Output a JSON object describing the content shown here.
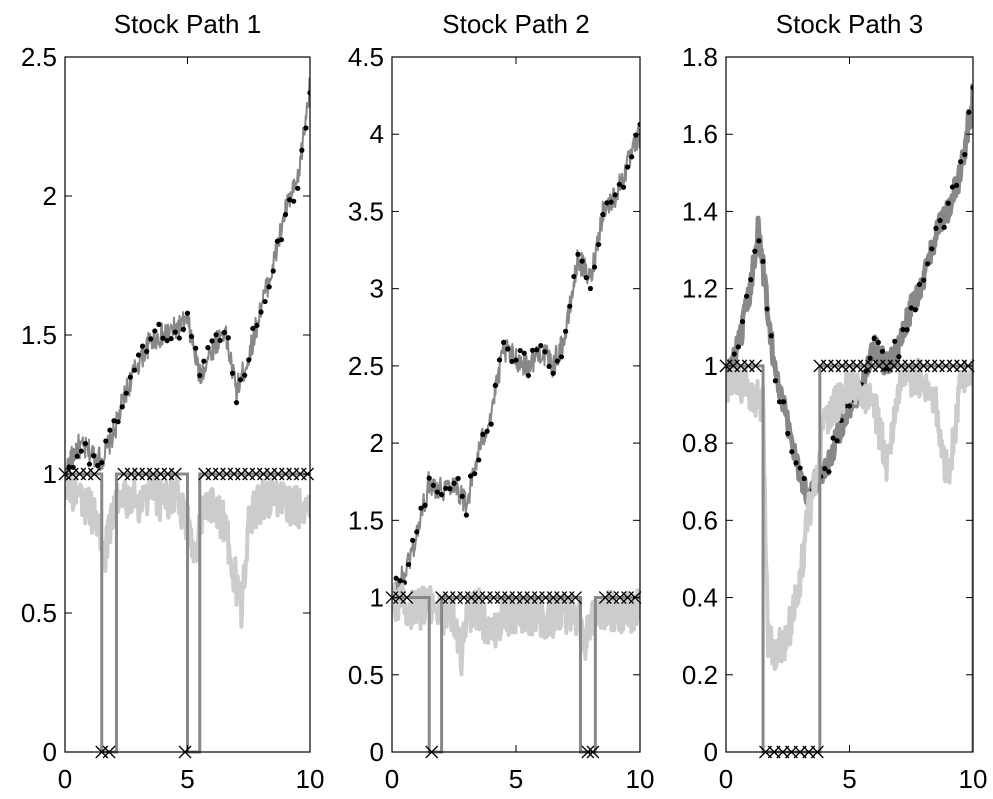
{
  "chart_data": [
    {
      "type": "line",
      "title": "Stock Path 1",
      "xlim": [
        0,
        10
      ],
      "ylim": [
        0,
        2.5
      ],
      "xticks": [
        0,
        5,
        10
      ],
      "yticks": [
        0,
        0.5,
        1,
        1.5,
        2,
        2.5
      ],
      "xtick_labels": [
        "0",
        "5",
        "10"
      ],
      "ytick_labels": [
        "0",
        "0.5",
        "1",
        "1.5",
        "2",
        "2.5"
      ],
      "series": [
        {
          "color": "#888888",
          "style": "stock",
          "x": [
            0,
            0.5,
            1,
            1.5,
            2,
            2.5,
            3,
            3.5,
            4,
            4.5,
            5,
            5.5,
            6,
            6.5,
            7,
            7.5,
            8,
            8.5,
            9,
            9.5,
            10
          ],
          "y": [
            1.0,
            1.1,
            1.08,
            1.05,
            1.15,
            1.3,
            1.4,
            1.48,
            1.5,
            1.52,
            1.55,
            1.35,
            1.45,
            1.52,
            1.3,
            1.42,
            1.6,
            1.75,
            1.95,
            2.05,
            2.4
          ]
        },
        {
          "color": "#cccccc",
          "style": "line",
          "x": [
            0,
            0.5,
            1,
            1.4,
            1.6,
            2,
            2.5,
            3,
            3.5,
            4,
            4.5,
            5,
            5.3,
            5.6,
            6,
            6.5,
            7,
            7.2,
            7.5,
            8,
            8.5,
            9,
            9.5,
            10
          ],
          "y": [
            0.98,
            0.9,
            0.88,
            0.8,
            0.7,
            0.88,
            0.92,
            0.9,
            0.93,
            0.9,
            0.94,
            0.82,
            0.72,
            0.85,
            0.9,
            0.82,
            0.6,
            0.5,
            0.85,
            0.9,
            0.92,
            0.9,
            0.88,
            0.9
          ]
        },
        {
          "color": "#888888",
          "style": "step",
          "x": [
            0,
            1.5,
            1.5,
            2.1,
            2.1,
            5,
            5,
            5.5,
            5.5,
            10
          ],
          "y": [
            1,
            1,
            0,
            0,
            1,
            1,
            0,
            0,
            1,
            1
          ]
        }
      ],
      "exercise_x": [
        0,
        0.3,
        0.6,
        0.9,
        1.2,
        2.4,
        2.7,
        3.0,
        3.3,
        3.6,
        3.9,
        4.2,
        4.5,
        5.7,
        6.0,
        6.3,
        6.6,
        6.9,
        7.2,
        7.5,
        7.8,
        8.1,
        8.4,
        8.7,
        9.0,
        9.3,
        9.6,
        9.9
      ],
      "zero_x": [
        1.5,
        1.8,
        4.9
      ]
    },
    {
      "type": "line",
      "title": "Stock Path 2",
      "xlim": [
        0,
        10
      ],
      "ylim": [
        0,
        4.5
      ],
      "xticks": [
        0,
        5,
        10
      ],
      "yticks": [
        0,
        0.5,
        1,
        1.5,
        2,
        2.5,
        3,
        3.5,
        4,
        4.5
      ],
      "xtick_labels": [
        "0",
        "5",
        "10"
      ],
      "ytick_labels": [
        "0",
        "0.5",
        "1",
        "1.5",
        "2",
        "2.5",
        "3",
        "3.5",
        "4",
        "4.5"
      ],
      "series": [
        {
          "color": "#888888",
          "style": "stock",
          "x": [
            0,
            0.5,
            1,
            1.5,
            2,
            2.5,
            3,
            3.5,
            4,
            4.5,
            5,
            5.5,
            6,
            6.5,
            7,
            7.5,
            8,
            8.5,
            9,
            9.5,
            10
          ],
          "y": [
            1.0,
            1.15,
            1.4,
            1.75,
            1.7,
            1.75,
            1.6,
            1.95,
            2.2,
            2.6,
            2.55,
            2.5,
            2.6,
            2.5,
            2.7,
            3.2,
            3.05,
            3.5,
            3.6,
            3.8,
            4.0
          ]
        },
        {
          "color": "#cccccc",
          "style": "line",
          "x": [
            0,
            0.5,
            1,
            1.5,
            2,
            2.5,
            2.8,
            3,
            3.5,
            4,
            4.5,
            5,
            5.5,
            6,
            6.5,
            7,
            7.5,
            7.8,
            8,
            8.5,
            9,
            9.5,
            10
          ],
          "y": [
            0.98,
            0.95,
            0.92,
            0.95,
            0.9,
            0.88,
            0.6,
            0.88,
            0.92,
            0.75,
            0.9,
            0.88,
            0.9,
            0.85,
            0.88,
            0.9,
            0.86,
            0.7,
            0.88,
            0.9,
            0.92,
            0.9,
            0.93
          ]
        },
        {
          "color": "#888888",
          "style": "step",
          "x": [
            0,
            1.5,
            1.5,
            2.0,
            2.0,
            4.2,
            4.2,
            7.6,
            7.6,
            8.2,
            8.2,
            10
          ],
          "y": [
            1,
            1,
            0,
            0,
            1,
            1,
            1,
            1,
            0,
            0,
            1,
            1
          ]
        }
      ],
      "exercise_x": [
        0,
        0.3,
        0.6,
        2.0,
        2.3,
        2.6,
        2.9,
        3.2,
        3.5,
        3.8,
        4.1,
        4.4,
        4.7,
        5.0,
        5.3,
        5.6,
        5.9,
        6.2,
        6.5,
        6.8,
        7.1,
        7.4,
        8.6,
        8.9,
        9.2,
        9.5,
        9.8
      ],
      "zero_x": [
        1.6,
        7.9,
        8.1
      ]
    },
    {
      "type": "line",
      "title": "Stock Path 3",
      "xlim": [
        0,
        10
      ],
      "ylim": [
        0,
        1.8
      ],
      "xticks": [
        0,
        5,
        10
      ],
      "yticks": [
        0,
        0.2,
        0.4,
        0.6,
        0.8,
        1,
        1.2,
        1.4,
        1.6,
        1.8
      ],
      "xtick_labels": [
        "0",
        "5",
        "10"
      ],
      "ytick_labels": [
        "0",
        "0.2",
        "0.4",
        "0.6",
        "0.8",
        "1",
        "1.2",
        "1.4",
        "1.6",
        "1.8"
      ],
      "series": [
        {
          "color": "#888888",
          "style": "stock",
          "x": [
            0,
            0.5,
            1,
            1.3,
            1.6,
            2,
            2.5,
            3,
            3.3,
            3.6,
            4,
            4.5,
            5,
            5.5,
            6,
            6.5,
            7,
            7.5,
            8,
            8.5,
            9,
            9.5,
            10
          ],
          "y": [
            0.97,
            1.05,
            1.2,
            1.36,
            1.2,
            0.98,
            0.85,
            0.72,
            0.66,
            0.7,
            0.72,
            0.82,
            0.9,
            0.95,
            1.05,
            1.0,
            1.05,
            1.15,
            1.22,
            1.35,
            1.4,
            1.5,
            1.7
          ]
        },
        {
          "color": "#cccccc",
          "style": "line",
          "x": [
            0,
            0.5,
            1,
            1.5,
            1.7,
            2,
            2.5,
            3,
            3.3,
            3.6,
            4,
            4.5,
            5,
            5.5,
            6,
            6.5,
            7,
            7.5,
            8,
            8.5,
            9,
            9.5,
            10
          ],
          "y": [
            0.95,
            0.96,
            0.94,
            0.9,
            0.3,
            0.25,
            0.3,
            0.45,
            0.6,
            0.7,
            0.85,
            0.9,
            0.95,
            0.92,
            0.9,
            0.75,
            0.95,
            0.96,
            0.97,
            0.9,
            0.7,
            0.95,
            0.97
          ]
        },
        {
          "color": "#888888",
          "style": "step",
          "x": [
            0,
            1.5,
            1.5,
            3.8,
            3.8,
            10,
            10
          ],
          "y": [
            1,
            1,
            0,
            0,
            1,
            1,
            0
          ]
        }
      ],
      "exercise_x": [
        0,
        0.3,
        0.6,
        0.9,
        1.2,
        3.8,
        4.1,
        4.4,
        4.7,
        5.0,
        5.3,
        5.6,
        5.9,
        6.2,
        6.5,
        6.8,
        7.1,
        7.4,
        7.7,
        8.0,
        8.3,
        8.6,
        8.9,
        9.2,
        9.5,
        9.8
      ],
      "zero_x": [
        1.6,
        1.95,
        2.3,
        2.65,
        3.0,
        3.35,
        3.7
      ]
    }
  ]
}
